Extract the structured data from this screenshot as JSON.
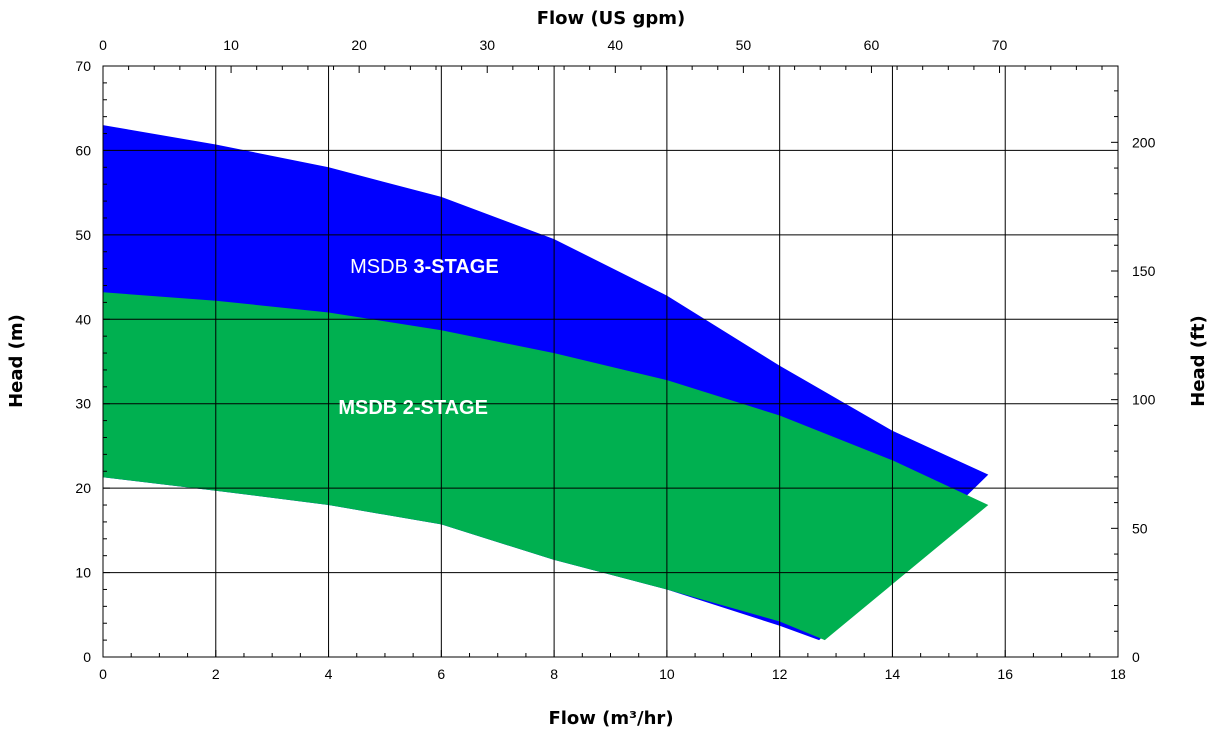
{
  "chart_data": {
    "type": "area",
    "title": "",
    "x_bottom": {
      "label": "Flow (m³/hr)",
      "range": [
        0,
        18
      ],
      "ticks": [
        0,
        2,
        4,
        6,
        8,
        10,
        12,
        14,
        16,
        18
      ]
    },
    "x_top": {
      "label": "Flow (US gpm)",
      "range": [
        0,
        79.25
      ],
      "ticks": [
        0,
        10,
        20,
        30,
        40,
        50,
        60,
        70
      ]
    },
    "y_left": {
      "label": "Head (m)",
      "range": [
        0,
        70
      ],
      "ticks": [
        0,
        10,
        20,
        30,
        40,
        50,
        60,
        70
      ]
    },
    "y_right": {
      "label": "Head (ft)",
      "range": [
        0,
        229.66
      ],
      "ticks": [
        0,
        50,
        100,
        150,
        200
      ]
    },
    "grid": true,
    "series": [
      {
        "name": "MSDB 3-STAGE",
        "color": "#0000ff",
        "upper": [
          [
            0,
            63
          ],
          [
            2,
            60.7
          ],
          [
            4,
            58
          ],
          [
            6,
            54.5
          ],
          [
            8,
            49.5
          ],
          [
            10,
            42.8
          ],
          [
            12,
            34.5
          ],
          [
            14,
            26.8
          ],
          [
            15.7,
            21.6
          ]
        ],
        "lower": [
          [
            0,
            21.3
          ],
          [
            2,
            19.7
          ],
          [
            4,
            18
          ],
          [
            6,
            15.7
          ],
          [
            8,
            11.5
          ],
          [
            10,
            8
          ],
          [
            12,
            3.7
          ],
          [
            12.7,
            2
          ]
        ]
      },
      {
        "name": "MSDB 2-STAGE",
        "color": "#00b050",
        "upper": [
          [
            0,
            43.2
          ],
          [
            2,
            42.2
          ],
          [
            4,
            40.8
          ],
          [
            6,
            38.7
          ],
          [
            8,
            36
          ],
          [
            10,
            32.8
          ],
          [
            12,
            28.6
          ],
          [
            14,
            23.3
          ],
          [
            15.7,
            18
          ]
        ],
        "lower": [
          [
            0,
            21.3
          ],
          [
            2,
            19.7
          ],
          [
            4,
            18
          ],
          [
            6,
            15.7
          ],
          [
            8,
            11.5
          ],
          [
            10,
            8
          ],
          [
            12,
            4.2
          ],
          [
            12.8,
            2
          ]
        ]
      }
    ],
    "annotations": [
      {
        "text_prefix": "MSDB ",
        "text_bold": "3-STAGE",
        "x": 5.7,
        "y": 45.5
      },
      {
        "text_prefix": "",
        "text_bold": "MSDB 2-STAGE",
        "x": 5.5,
        "y": 28.8
      }
    ]
  }
}
